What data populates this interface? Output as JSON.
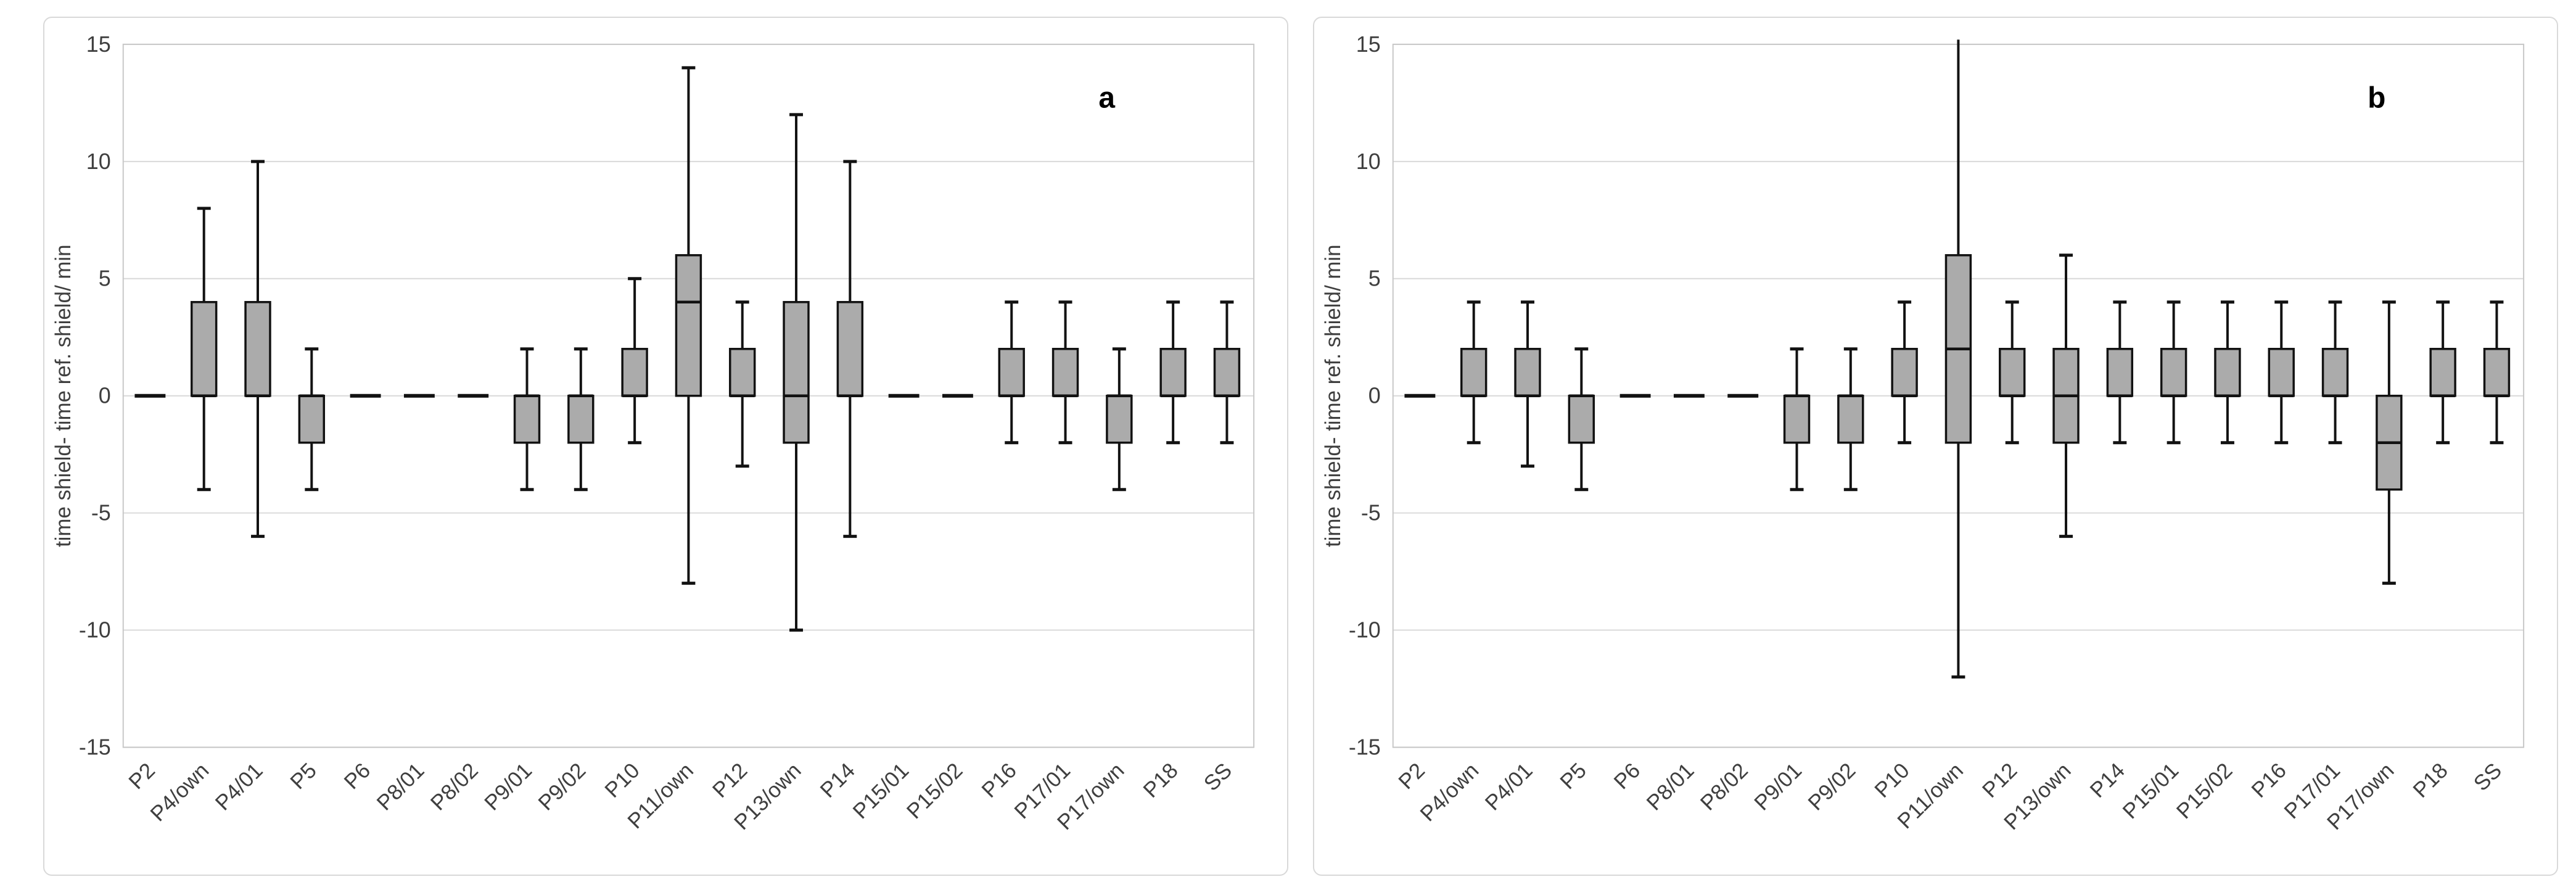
{
  "figure": {
    "background": "#ffffff",
    "panel_border_color": "#d9d9d9",
    "grid_color": "#d9d9d9",
    "plot_border_color": "#c8c8c8",
    "tick_text_color": "#3f3f3f",
    "box_fill": "#ababab",
    "box_stroke": "#121212",
    "whisker_color": "#121212",
    "dash_color": "#121212"
  },
  "chart_data": [
    {
      "type": "box",
      "panel_label": "a",
      "title": "",
      "xlabel": "",
      "ylabel": "time shield- time ref. shield/ min",
      "ylim": [
        -15,
        15
      ],
      "yticks": [
        15,
        10,
        5,
        0,
        -5,
        -10,
        -15
      ],
      "grid": true,
      "legend": "none",
      "categories": [
        "P2",
        "P4/own",
        "P4/01",
        "P5",
        "P6",
        "P8/01",
        "P8/02",
        "P9/01",
        "P9/02",
        "P10",
        "P11/own",
        "P12",
        "P13/own",
        "P14",
        "P15/01",
        "P15/02",
        "P16",
        "P17/01",
        "P17/own",
        "P18",
        "SS"
      ],
      "boxes": [
        {
          "category": "P2",
          "dash_at": 0
        },
        {
          "category": "P4/own",
          "q1": 0,
          "median": 0,
          "q3": 4,
          "whisker_low": -4,
          "whisker_high": 8
        },
        {
          "category": "P4/01",
          "q1": 0,
          "median": 0,
          "q3": 4,
          "whisker_low": -6,
          "whisker_high": 10
        },
        {
          "category": "P5",
          "q1": -2,
          "median": 0,
          "q3": 0,
          "whisker_low": -4,
          "whisker_high": 2
        },
        {
          "category": "P6",
          "dash_at": 0
        },
        {
          "category": "P8/01",
          "dash_at": 0
        },
        {
          "category": "P8/02",
          "dash_at": 0
        },
        {
          "category": "P9/01",
          "q1": -2,
          "median": 0,
          "q3": 0,
          "whisker_low": -4,
          "whisker_high": 2
        },
        {
          "category": "P9/02",
          "q1": -2,
          "median": 0,
          "q3": 0,
          "whisker_low": -4,
          "whisker_high": 2
        },
        {
          "category": "P10",
          "q1": 0,
          "median": 0,
          "q3": 2,
          "whisker_low": -2,
          "whisker_high": 5
        },
        {
          "category": "P11/own",
          "q1": 0,
          "median": 4,
          "q3": 6,
          "whisker_low": -8,
          "whisker_high": 14
        },
        {
          "category": "P12",
          "q1": 0,
          "median": 0,
          "q3": 2,
          "whisker_low": -3,
          "whisker_high": 4
        },
        {
          "category": "P13/own",
          "q1": -2,
          "median": 0,
          "q3": 4,
          "whisker_low": -10,
          "whisker_high": 12
        },
        {
          "category": "P14",
          "q1": 0,
          "median": 0,
          "q3": 4,
          "whisker_low": -6,
          "whisker_high": 10
        },
        {
          "category": "P15/01",
          "dash_at": 0
        },
        {
          "category": "P15/02",
          "dash_at": 0
        },
        {
          "category": "P16",
          "q1": 0,
          "median": 0,
          "q3": 2,
          "whisker_low": -2,
          "whisker_high": 4
        },
        {
          "category": "P17/01",
          "q1": 0,
          "median": 0,
          "q3": 2,
          "whisker_low": -2,
          "whisker_high": 4
        },
        {
          "category": "P17/own",
          "q1": -2,
          "median": 0,
          "q3": 0,
          "whisker_low": -4,
          "whisker_high": 2
        },
        {
          "category": "P18",
          "q1": 0,
          "median": 0,
          "q3": 2,
          "whisker_low": -2,
          "whisker_high": 4
        },
        {
          "category": "SS",
          "q1": 0,
          "median": 0,
          "q3": 2,
          "whisker_low": -2,
          "whisker_high": 4
        }
      ]
    },
    {
      "type": "box",
      "panel_label": "b",
      "title": "",
      "xlabel": "",
      "ylabel": "time shield- time ref. shield/ min",
      "ylim": [
        -15,
        15
      ],
      "yticks": [
        15,
        10,
        5,
        0,
        -5,
        -10,
        -15
      ],
      "grid": true,
      "legend": "none",
      "categories": [
        "P2",
        "P4/own",
        "P4/01",
        "P5",
        "P6",
        "P8/01",
        "P8/02",
        "P9/01",
        "P9/02",
        "P10",
        "P11/own",
        "P12",
        "P13/own",
        "P14",
        "P15/01",
        "P15/02",
        "P16",
        "P17/01",
        "P17/own",
        "P18",
        "SS"
      ],
      "boxes": [
        {
          "category": "P2",
          "dash_at": 0
        },
        {
          "category": "P4/own",
          "q1": 0,
          "median": 0,
          "q3": 2,
          "whisker_low": -2,
          "whisker_high": 4
        },
        {
          "category": "P4/01",
          "q1": 0,
          "median": 0,
          "q3": 2,
          "whisker_low": -3,
          "whisker_high": 4
        },
        {
          "category": "P5",
          "q1": -2,
          "median": 0,
          "q3": 0,
          "whisker_low": -4,
          "whisker_high": 2
        },
        {
          "category": "P6",
          "dash_at": 0
        },
        {
          "category": "P8/01",
          "dash_at": 0
        },
        {
          "category": "P8/02",
          "dash_at": 0
        },
        {
          "category": "P9/01",
          "q1": -2,
          "median": 0,
          "q3": 0,
          "whisker_low": -4,
          "whisker_high": 2
        },
        {
          "category": "P9/02",
          "q1": -2,
          "median": 0,
          "q3": 0,
          "whisker_low": -4,
          "whisker_high": 2
        },
        {
          "category": "P10",
          "q1": 0,
          "median": 0,
          "q3": 2,
          "whisker_low": -2,
          "whisker_high": 4
        },
        {
          "category": "P11/own",
          "q1": -2,
          "median": 2,
          "q3": 6,
          "whisker_low": -12,
          "whisker_high": 15.2,
          "whisker_high_cap": false
        },
        {
          "category": "P12",
          "q1": 0,
          "median": 0,
          "q3": 2,
          "whisker_low": -2,
          "whisker_high": 4
        },
        {
          "category": "P13/own",
          "q1": -2,
          "median": 0,
          "q3": 2,
          "whisker_low": -6,
          "whisker_high": 6
        },
        {
          "category": "P14",
          "q1": 0,
          "median": 0,
          "q3": 2,
          "whisker_low": -2,
          "whisker_high": 4
        },
        {
          "category": "P15/01",
          "q1": 0,
          "median": 0,
          "q3": 2,
          "whisker_low": -2,
          "whisker_high": 4
        },
        {
          "category": "P15/02",
          "q1": 0,
          "median": 0,
          "q3": 2,
          "whisker_low": -2,
          "whisker_high": 4
        },
        {
          "category": "P16",
          "q1": 0,
          "median": 0,
          "q3": 2,
          "whisker_low": -2,
          "whisker_high": 4
        },
        {
          "category": "P17/01",
          "q1": 0,
          "median": 0,
          "q3": 2,
          "whisker_low": -2,
          "whisker_high": 4
        },
        {
          "category": "P17/own",
          "q1": -4,
          "median": -2,
          "q3": 0,
          "whisker_low": -8,
          "whisker_high": 4
        },
        {
          "category": "P18",
          "q1": 0,
          "median": 0,
          "q3": 2,
          "whisker_low": -2,
          "whisker_high": 4
        },
        {
          "category": "SS",
          "q1": 0,
          "median": 0,
          "q3": 2,
          "whisker_low": -2,
          "whisker_high": 4
        }
      ]
    }
  ]
}
